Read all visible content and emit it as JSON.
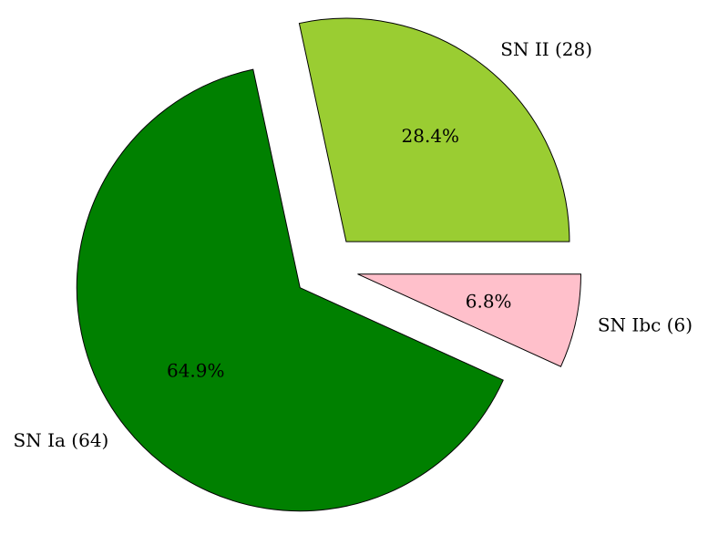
{
  "chart_data": {
    "type": "pie",
    "categories": [
      "SN II (28)",
      "SN Ia (64)",
      "SN Ibc (6)"
    ],
    "values": [
      28.4,
      64.9,
      6.8
    ],
    "value_labels": [
      "28.4%",
      "64.9%",
      "6.8%"
    ],
    "colors": [
      "#9acd32",
      "#008000",
      "#ffc0cb"
    ]
  }
}
